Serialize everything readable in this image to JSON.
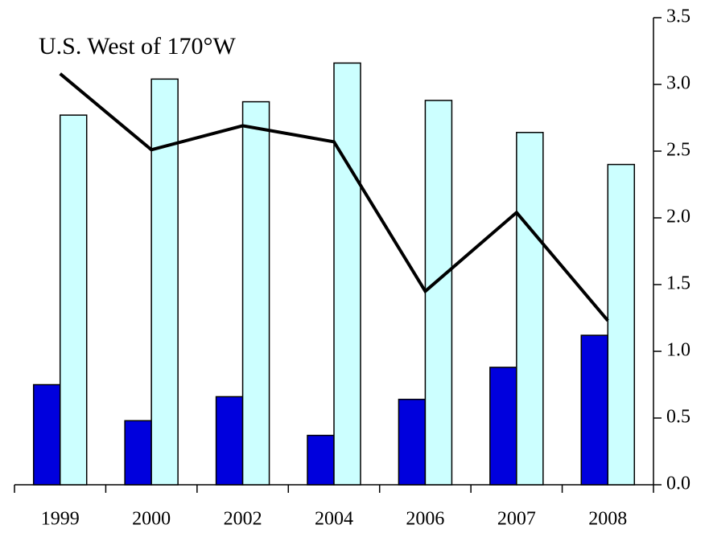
{
  "chart_data": {
    "type": "bar",
    "title": "U.S. West of 170°W",
    "categories": [
      "1999",
      "2000",
      "2002",
      "2004",
      "2006",
      "2007",
      "2008"
    ],
    "series": [
      {
        "type": "bar",
        "color": "#0000dd",
        "values": [
          0.75,
          0.48,
          0.66,
          0.37,
          0.64,
          0.88,
          1.12
        ]
      },
      {
        "type": "bar",
        "color": "#ccffff",
        "values": [
          2.77,
          3.04,
          2.87,
          3.16,
          2.88,
          2.64,
          2.4
        ]
      },
      {
        "type": "line",
        "color": "#000000",
        "values": [
          3.08,
          2.51,
          2.69,
          2.57,
          1.45,
          2.04,
          1.23
        ]
      }
    ],
    "ylim": [
      0,
      3.5
    ],
    "yticks": [
      {
        "value": 0,
        "label": "0.0"
      },
      0.5,
      {
        "value": 1,
        "label": "1.0"
      },
      1.5,
      {
        "value": 2,
        "label": "2.0"
      },
      2.5,
      {
        "value": 3,
        "label": "3.0"
      },
      3.5
    ],
    "grid": false
  }
}
